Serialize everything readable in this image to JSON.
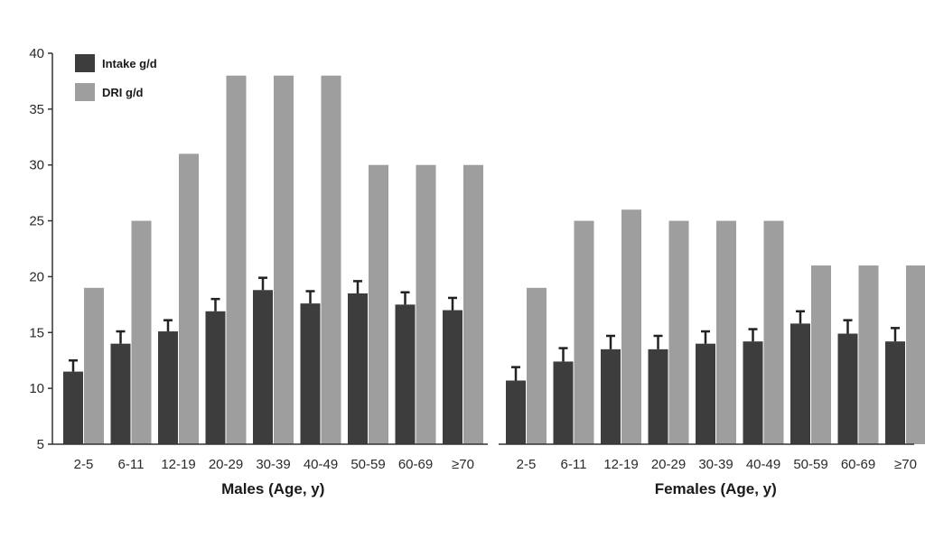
{
  "colors": {
    "intake": "#3d3d3d",
    "dri": "#9e9e9e",
    "axis": "#333333",
    "error_bar": "#222222"
  },
  "legend": {
    "placement": "top-left",
    "items": [
      {
        "label": "Intake g/d",
        "color_key": "intake"
      },
      {
        "label": "DRI g/d",
        "color_key": "dri"
      }
    ]
  },
  "chart_data": {
    "type": "bar",
    "title": "",
    "ylabel": "",
    "ylim": [
      5,
      40
    ],
    "yticks": [
      5,
      10,
      15,
      20,
      25,
      30,
      35,
      40
    ],
    "grid": false,
    "series_names": [
      "Intake g/d",
      "DRI g/d"
    ],
    "groups": [
      {
        "label": "Males (Age, y)",
        "categories": [
          "2-5",
          "6-11",
          "12-19",
          "20-29",
          "30-39",
          "40-49",
          "50-59",
          "60-69",
          "≥70"
        ],
        "intake": [
          11.5,
          14,
          15.1,
          16.9,
          18.8,
          17.6,
          18.5,
          17.5,
          17.0
        ],
        "intake_error": [
          1.0,
          1.1,
          1.0,
          1.1,
          1.1,
          1.1,
          1.1,
          1.1,
          1.1
        ],
        "dri": [
          19,
          25,
          31,
          38,
          38,
          38,
          30,
          30,
          30
        ]
      },
      {
        "label": "Females (Age, y)",
        "categories": [
          "2-5",
          "6-11",
          "12-19",
          "20-29",
          "30-39",
          "40-49",
          "50-59",
          "60-69",
          "≥70"
        ],
        "intake": [
          10.7,
          12.4,
          13.5,
          13.5,
          14.0,
          14.2,
          15.8,
          14.9,
          14.2
        ],
        "intake_error": [
          1.2,
          1.2,
          1.2,
          1.2,
          1.1,
          1.1,
          1.1,
          1.2,
          1.2
        ],
        "dri": [
          19,
          25,
          26,
          25,
          25,
          25,
          21,
          21,
          21
        ]
      }
    ]
  }
}
